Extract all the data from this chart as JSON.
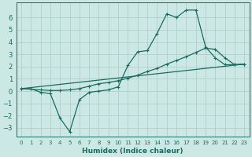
{
  "xlabel": "Humidex (Indice chaleur)",
  "bg_color": "#cce8e4",
  "grid_color": "#aecfcb",
  "line_color": "#1a6b60",
  "xlim": [
    -0.5,
    23.5
  ],
  "ylim": [
    -3.7,
    7.2
  ],
  "yticks": [
    -3,
    -2,
    -1,
    0,
    1,
    2,
    3,
    4,
    5,
    6
  ],
  "xticks": [
    0,
    1,
    2,
    3,
    4,
    5,
    6,
    7,
    8,
    9,
    10,
    11,
    12,
    13,
    14,
    15,
    16,
    17,
    18,
    19,
    20,
    21,
    22,
    23
  ],
  "line1_x": [
    0,
    1,
    2,
    3,
    4,
    5,
    6,
    7,
    8,
    9,
    10,
    11,
    12,
    13,
    14,
    15,
    16,
    17,
    18,
    19,
    20,
    21,
    22,
    23
  ],
  "line1_y": [
    0.2,
    0.2,
    -0.1,
    -0.2,
    -2.2,
    -3.3,
    -0.7,
    -0.1,
    0.0,
    0.1,
    0.35,
    2.1,
    3.2,
    3.3,
    4.7,
    6.3,
    6.0,
    6.6,
    6.6,
    3.6,
    2.7,
    2.15,
    2.15,
    2.2
  ],
  "line2_x": [
    0,
    2,
    3,
    4,
    5,
    6,
    7,
    8,
    9,
    10,
    11,
    12,
    13,
    14,
    15,
    16,
    17,
    18,
    19,
    20,
    21,
    22,
    23
  ],
  "line2_y": [
    0.2,
    0.1,
    0.05,
    0.05,
    0.1,
    0.2,
    0.4,
    0.6,
    0.7,
    0.85,
    1.05,
    1.3,
    1.6,
    1.85,
    2.2,
    2.5,
    2.8,
    3.15,
    3.5,
    3.4,
    2.7,
    2.15,
    2.2
  ],
  "line3_x": [
    0,
    23
  ],
  "line3_y": [
    0.2,
    2.2
  ]
}
